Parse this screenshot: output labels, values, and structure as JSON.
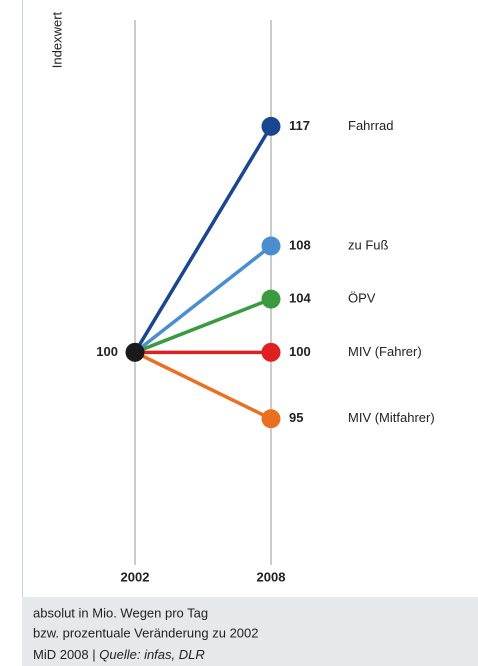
{
  "chart_data": {
    "type": "slope",
    "y_label": "Indexwert",
    "categories": [
      "2002",
      "2008"
    ],
    "ylim": [
      84,
      125
    ],
    "start_color": "#1a1a1a",
    "series": [
      {
        "name": "Fahrrad",
        "color": "#1a4690",
        "values": [
          100,
          117
        ]
      },
      {
        "name": "zu Fuß",
        "color": "#4a8ed0",
        "values": [
          100,
          108
        ]
      },
      {
        "name": "ÖPV",
        "color": "#3a9a3f",
        "values": [
          100,
          104
        ]
      },
      {
        "name": "MIV (Fahrer)",
        "color": "#e02020",
        "values": [
          100,
          100
        ]
      },
      {
        "name": "MIV (Mitfahrer)",
        "color": "#e87020",
        "values": [
          100,
          95
        ]
      }
    ],
    "notes": [
      "absolut in Mio. Wegen pro Tag",
      "bzw. prozentuale Veränderung zu 2002"
    ],
    "source_prefix": "MiD 2008 |",
    "source": "Quelle: infas, DLR"
  }
}
